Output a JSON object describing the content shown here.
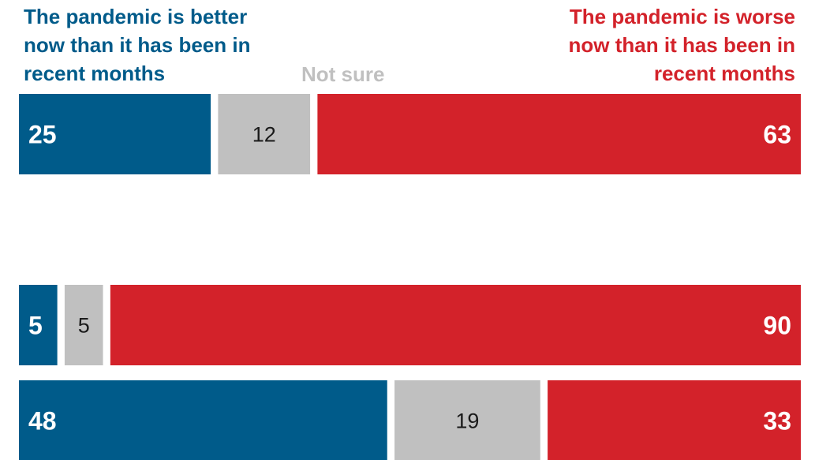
{
  "chart_data": {
    "type": "bar",
    "orientation": "horizontal",
    "stacked": true,
    "categories": [
      "",
      "",
      ""
    ],
    "series": [
      {
        "name": "The pandemic is better now than it has been in recent months",
        "color": "#005b8a",
        "label_color": "#ffffff",
        "values": [
          25,
          5,
          48
        ]
      },
      {
        "name": "Not sure",
        "color": "#c0c0c0",
        "label_color": "#1a1a1a",
        "values": [
          12,
          5,
          19
        ]
      },
      {
        "name": "The pandemic is worse now than it has been in recent months",
        "color": "#d3222a",
        "label_color": "#ffffff",
        "values": [
          63,
          90,
          33
        ]
      }
    ],
    "xlim": [
      0,
      100
    ],
    "grid": false,
    "legend_placement": "top"
  }
}
